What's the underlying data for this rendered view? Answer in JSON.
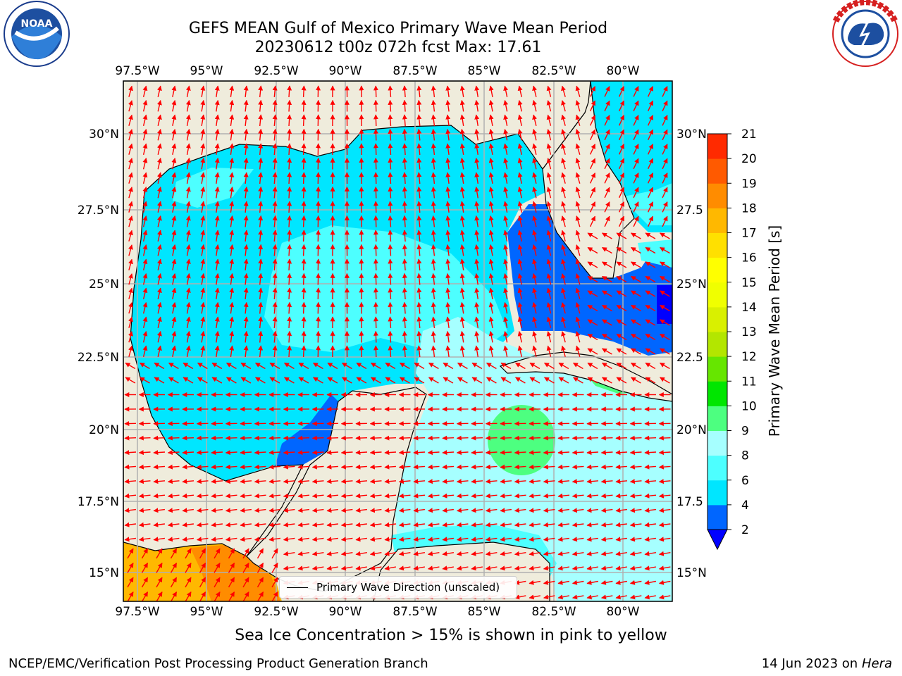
{
  "header": {
    "title_line1": "GEFS MEAN Gulf of Mexico Primary Wave Mean Period",
    "title_line2": "20230612 t00z 072h fcst   Max: 17.61"
  },
  "logos": {
    "left": {
      "name": "NOAA",
      "ring_text": "NATIONAL OCEANIC AND ATMOSPHERIC ADMINISTRATION · U.S. DEPARTMENT OF COMMERCE"
    },
    "right": {
      "name": "NATIONAL WEATHER SERVICE"
    }
  },
  "map": {
    "lon_ticks": [
      "97.5°W",
      "95°W",
      "92.5°W",
      "90°W",
      "87.5°W",
      "85°W",
      "82.5°W",
      "80°W"
    ],
    "lat_ticks_left": [
      "30°N",
      "27.5°N",
      "25°N",
      "22.5°N",
      "20°N",
      "17.5°N",
      "15°N"
    ],
    "lat_ticks_right": [
      "30°N",
      "27.5",
      "25°N",
      "22.5",
      "20°N",
      "17.5",
      "15°N"
    ],
    "colors": {
      "land": "#efecdc",
      "grid": "#b0b0b0",
      "arrow": "#ff0000"
    },
    "legend_label": "Primary Wave Direction (unscaled)"
  },
  "colorbar": {
    "label": "Primary Wave Mean Period [s]",
    "ticks": [
      "2",
      "4",
      "6",
      "8",
      "9",
      "10",
      "11",
      "12",
      "13",
      "14",
      "15",
      "16",
      "17",
      "18",
      "19",
      "20",
      "21"
    ],
    "colors": [
      "#0066ff",
      "#00e6ff",
      "#4dffff",
      "#a6ffff",
      "#4dff80",
      "#00e600",
      "#66e600",
      "#b3e600",
      "#d9f000",
      "#f0ff00",
      "#ffff00",
      "#ffe000",
      "#ffb800",
      "#ff8c00",
      "#ff5a00",
      "#ff2a00"
    ],
    "extend_color": "#0000ff"
  },
  "footer": {
    "note": "Sea Ice Concentration > 15% is shown in pink to yellow",
    "left": "NCEP/EMC/Verification Post Processing Product Generation Branch",
    "right_date": "14 Jun 2023 on",
    "right_host": "Hera"
  }
}
